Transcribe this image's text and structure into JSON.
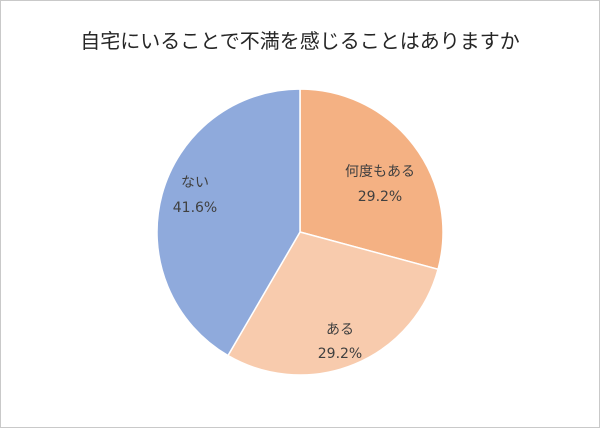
{
  "chart_data": {
    "type": "pie",
    "title": "自宅にいることで不満を感じることはありますか",
    "slices": [
      {
        "label": "何度もある",
        "value": 29.2,
        "value_label": "29.2%",
        "color": "#F4B183"
      },
      {
        "label": "ある",
        "value": 29.2,
        "value_label": "29.2%",
        "color": "#F8CBAD"
      },
      {
        "label": "ない",
        "value": 41.6,
        "value_label": "41.6%",
        "color": "#8FAADC"
      }
    ]
  }
}
